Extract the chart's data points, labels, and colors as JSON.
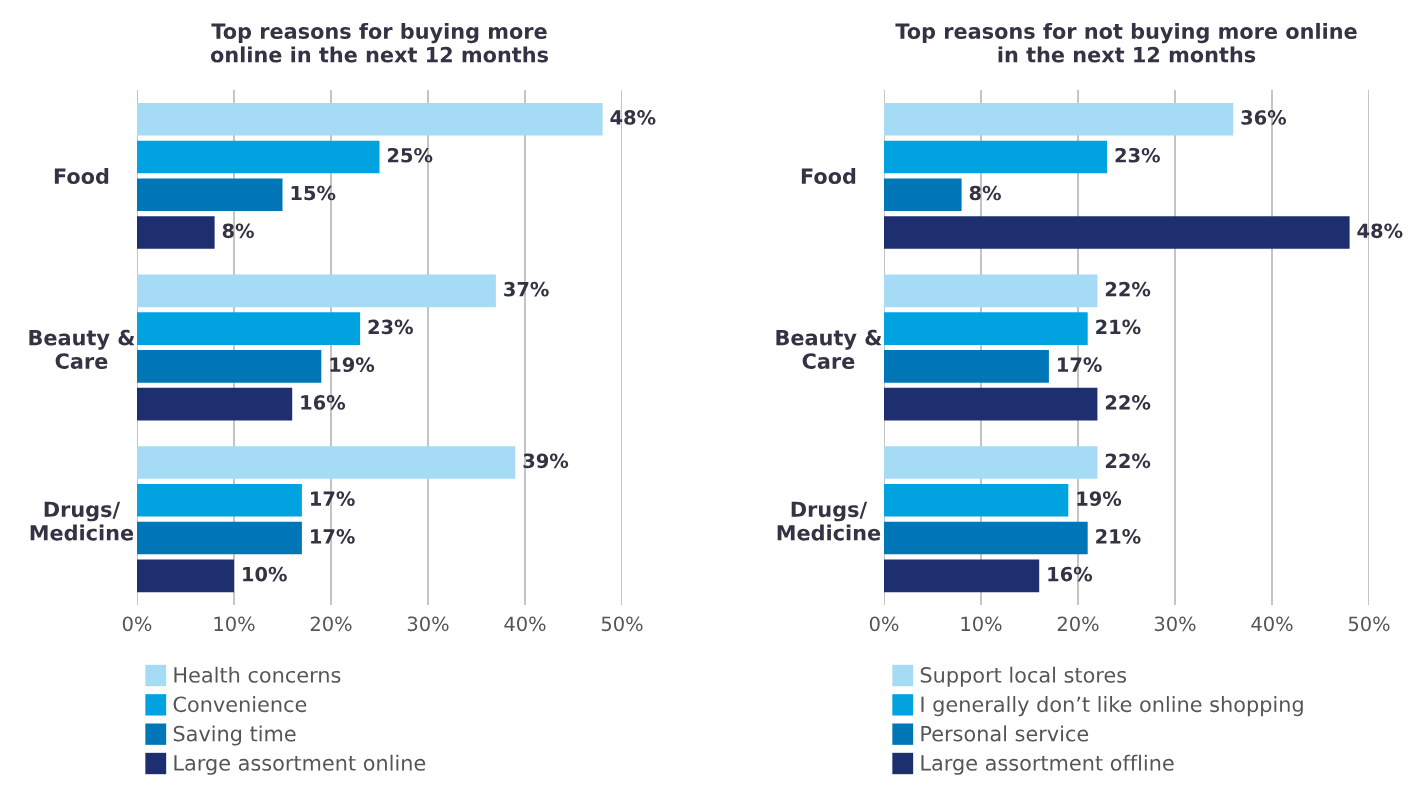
{
  "chart_data": [
    {
      "type": "bar",
      "orientation": "horizontal",
      "title": "Top reasons for buying more\nonline in the next 12 months",
      "categories": [
        "Food",
        "Beauty &\nCare",
        "Drugs/\nMedicine"
      ],
      "xlim": [
        0,
        50
      ],
      "xticks": [
        {
          "value": 0,
          "label": "0%"
        },
        {
          "value": 10,
          "label": "10%"
        },
        {
          "value": 20,
          "label": "20%"
        },
        {
          "value": 30,
          "label": "30%"
        },
        {
          "value": 40,
          "label": "40%"
        },
        {
          "value": 50,
          "label": "50%"
        }
      ],
      "grid": "x",
      "legend": "bottom",
      "series": [
        {
          "name": "Health concerns",
          "color": "#a6dbf5",
          "values": [
            48,
            37,
            39
          ],
          "value_labels": [
            "48%",
            "37%",
            "39%"
          ]
        },
        {
          "name": "Convenience",
          "color": "#00a3e0",
          "values": [
            25,
            23,
            17
          ],
          "value_labels": [
            "25%",
            "23%",
            "17%"
          ]
        },
        {
          "name": "Saving time",
          "color": "#0076b6",
          "values": [
            15,
            19,
            17
          ],
          "value_labels": [
            "15%",
            "19%",
            "17%"
          ]
        },
        {
          "name": "Large assortment online",
          "color": "#1d2f6f",
          "values": [
            8,
            16,
            10
          ],
          "value_labels": [
            "8%",
            "16%",
            "10%"
          ]
        }
      ]
    },
    {
      "type": "bar",
      "orientation": "horizontal",
      "title": "Top reasons for not buying more online\nin the next 12 months",
      "categories": [
        "Food",
        "Beauty &\nCare",
        "Drugs/\nMedicine"
      ],
      "xlim": [
        0,
        50
      ],
      "xticks": [
        {
          "value": 0,
          "label": "0%"
        },
        {
          "value": 10,
          "label": "10%"
        },
        {
          "value": 20,
          "label": "20%"
        },
        {
          "value": 30,
          "label": "30%"
        },
        {
          "value": 40,
          "label": "40%"
        },
        {
          "value": 50,
          "label": "50%"
        }
      ],
      "grid": "x",
      "legend": "bottom",
      "series": [
        {
          "name": "Support local stores",
          "color": "#a6dbf5",
          "values": [
            36,
            22,
            22
          ],
          "value_labels": [
            "36%",
            "22%",
            "22%"
          ]
        },
        {
          "name": "I generally don’t like online shopping",
          "color": "#00a3e0",
          "values": [
            23,
            21,
            19
          ],
          "value_labels": [
            "23%",
            "21%",
            "19%"
          ]
        },
        {
          "name": "Personal service",
          "color": "#0076b6",
          "values": [
            8,
            17,
            21
          ],
          "value_labels": [
            "8%",
            "17%",
            "21%"
          ]
        },
        {
          "name": "Large assortment offline",
          "color": "#1d2f6f",
          "values": [
            48,
            22,
            16
          ],
          "value_labels": [
            "48%",
            "22%",
            "16%"
          ]
        }
      ]
    }
  ]
}
